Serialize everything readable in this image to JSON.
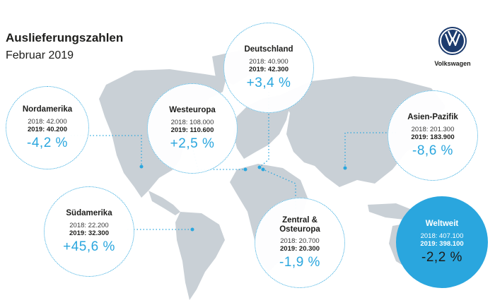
{
  "header": {
    "title": "Auslieferungszahlen",
    "subtitle": "Februar 2019"
  },
  "brand": {
    "name": "Volkswagen",
    "logo_icon": "vw-logo-icon"
  },
  "colors": {
    "accent": "#2aa6de",
    "map": "#c9d0d6",
    "text": "#1d1d1b"
  },
  "regions": {
    "nordamerika": {
      "name": "Nordamerika",
      "y2018": "2018: 42.000",
      "y2019": "2019: 40.200",
      "change": "-4,2 %"
    },
    "westeuropa": {
      "name": "Westeuropa",
      "y2018": "2018: 108.000",
      "y2019": "2019: 110.600",
      "change": "+2,5 %"
    },
    "deutschland": {
      "name": "Deutschland",
      "y2018": "2018: 40.900",
      "y2019": "2019: 42.300",
      "change": "+3,4 %"
    },
    "asien": {
      "name": "Asien-Pazifik",
      "y2018": "2018: 201.300",
      "y2019": "2019: 183.900",
      "change": "-8,6 %"
    },
    "suedamerika": {
      "name": "Südamerika",
      "y2018": "2018: 22.200",
      "y2019": "2019: 32.300",
      "change": "+45,6 %"
    },
    "zentral_line1": "Zentral &",
    "zentral": {
      "name": "Osteuropa",
      "y2018": "2018: 20.700",
      "y2019": "2019: 20.300",
      "change": "-1,9 %"
    },
    "weltweit": {
      "name": "Weltweit",
      "y2018": "2018: 407.100",
      "y2019": "2019: 398.100",
      "change": "-2,2 %"
    }
  }
}
